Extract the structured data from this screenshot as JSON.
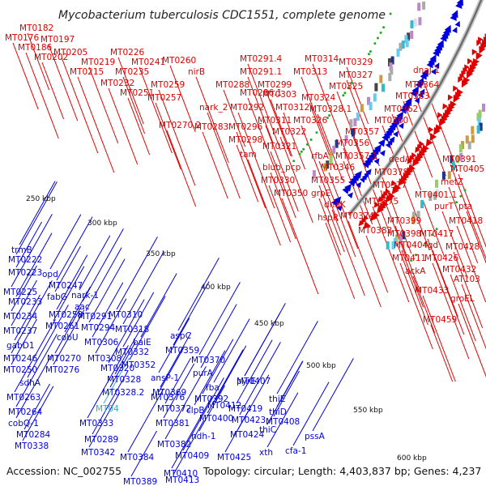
{
  "map": {
    "title": "Mycobacterium tuberculosis CDC1551, complete genome",
    "accession": "Accession: NC_002755",
    "summary": "Topology: circular; Length: 4,403,837 bp; Genes: 4,237"
  },
  "colors": {
    "forward": "#dd0000",
    "reverse": "#0000dd",
    "highlight": "#33aacc",
    "backbone": "#999999"
  },
  "ticks": [
    "250 kbp",
    "300 kbp",
    "350 kbp",
    "400 kbp",
    "450 kbp",
    "500 kbp",
    "550 kbp",
    "600 kbp"
  ],
  "labels": [
    {
      "text": "MT0182",
      "strand": "forward"
    },
    {
      "text": "MT0176",
      "strand": "forward"
    },
    {
      "text": "MT0197",
      "strand": "forward"
    },
    {
      "text": "MT0186",
      "strand": "forward"
    },
    {
      "text": "MT0205",
      "strand": "forward"
    },
    {
      "text": "MT0202",
      "strand": "forward"
    },
    {
      "text": "MT0226",
      "strand": "forward"
    },
    {
      "text": "MT0219",
      "strand": "forward"
    },
    {
      "text": "MT0241",
      "strand": "forward"
    },
    {
      "text": "MT0215",
      "strand": "forward"
    },
    {
      "text": "MT0235",
      "strand": "forward"
    },
    {
      "text": "MT0260",
      "strand": "forward"
    },
    {
      "text": "MT0232",
      "strand": "forward"
    },
    {
      "text": "nirB",
      "strand": "forward"
    },
    {
      "text": "MT0259",
      "strand": "forward"
    },
    {
      "text": "MT0251",
      "strand": "forward"
    },
    {
      "text": "MT0257",
      "strand": "forward"
    },
    {
      "text": "MT0270.2",
      "strand": "forward"
    },
    {
      "text": "MT0291.4",
      "strand": "forward"
    },
    {
      "text": "MT0314",
      "strand": "forward"
    },
    {
      "text": "MT0329",
      "strand": "forward"
    },
    {
      "text": "MT0291.1",
      "strand": "forward"
    },
    {
      "text": "MT0313",
      "strand": "forward"
    },
    {
      "text": "MT0327",
      "strand": "forward"
    },
    {
      "text": "dnaJ-1",
      "strand": "forward"
    },
    {
      "text": "MT0288",
      "strand": "forward"
    },
    {
      "text": "MT0299",
      "strand": "forward"
    },
    {
      "text": "MT0325",
      "strand": "forward"
    },
    {
      "text": "MT0364",
      "strand": "forward"
    },
    {
      "text": "MT0286.1",
      "strand": "forward"
    },
    {
      "text": "MT0303",
      "strand": "forward"
    },
    {
      "text": "MT0324",
      "strand": "forward"
    },
    {
      "text": "MT0363",
      "strand": "forward"
    },
    {
      "text": "nark_2",
      "strand": "forward"
    },
    {
      "text": "MT0292",
      "strand": "forward"
    },
    {
      "text": "MT0312",
      "strand": "forward"
    },
    {
      "text": "MT0328.1",
      "strand": "forward"
    },
    {
      "text": "MT0362",
      "strand": "forward"
    },
    {
      "text": "MT0311",
      "strand": "forward"
    },
    {
      "text": "MT0326",
      "strand": "forward"
    },
    {
      "text": "MT0360",
      "strand": "forward"
    },
    {
      "text": "MT0283",
      "strand": "forward"
    },
    {
      "text": "MT0296",
      "strand": "forward"
    },
    {
      "text": "MT0322",
      "strand": "forward"
    },
    {
      "text": "MT0357",
      "strand": "forward"
    },
    {
      "text": "MT0298",
      "strand": "forward"
    },
    {
      "text": "MT0321",
      "strand": "forward"
    },
    {
      "text": "MT0356",
      "strand": "forward"
    },
    {
      "text": "tam",
      "strand": "forward"
    },
    {
      "text": "rfbA",
      "strand": "forward"
    },
    {
      "text": "MT0357.1",
      "strand": "forward"
    },
    {
      "text": "blub_pcp",
      "strand": "forward"
    },
    {
      "text": "MT0346",
      "strand": "forward"
    },
    {
      "text": "dedA",
      "strand": "forward"
    },
    {
      "text": "MT0391",
      "strand": "forward"
    },
    {
      "text": "MT0330",
      "strand": "forward"
    },
    {
      "text": "MT0355",
      "strand": "forward"
    },
    {
      "text": "MT0378",
      "strand": "forward"
    },
    {
      "text": "MT0405",
      "strand": "forward"
    },
    {
      "text": "MT0350",
      "strand": "forward"
    },
    {
      "text": "grpE",
      "strand": "forward"
    },
    {
      "text": "MT0377",
      "strand": "forward"
    },
    {
      "text": "metZ",
      "strand": "forward"
    },
    {
      "text": "dnaK",
      "strand": "forward"
    },
    {
      "text": "MT0375",
      "strand": "forward"
    },
    {
      "text": "MT0401.1",
      "strand": "forward"
    },
    {
      "text": "purT",
      "strand": "forward"
    },
    {
      "text": "hspR",
      "strand": "forward"
    },
    {
      "text": "MT0374",
      "strand": "forward"
    },
    {
      "text": "pta",
      "strand": "forward"
    },
    {
      "text": "MT0383",
      "strand": "forward"
    },
    {
      "text": "MT0399",
      "strand": "forward"
    },
    {
      "text": "MT0418",
      "strand": "forward"
    },
    {
      "text": "MT0398",
      "strand": "forward"
    },
    {
      "text": "MT0417",
      "strand": "forward"
    },
    {
      "text": "MT0404",
      "strand": "forward"
    },
    {
      "text": "fgd",
      "strand": "forward"
    },
    {
      "text": "MT0428",
      "strand": "forward"
    },
    {
      "text": "MT0411",
      "strand": "forward"
    },
    {
      "text": "MT0426",
      "strand": "forward"
    },
    {
      "text": "ackA",
      "strand": "forward"
    },
    {
      "text": "MT0432",
      "strand": "forward"
    },
    {
      "text": "AT103",
      "strand": "forward"
    },
    {
      "text": "MT0433",
      "strand": "forward"
    },
    {
      "text": "groEL",
      "strand": "forward"
    },
    {
      "text": "MT0459",
      "strand": "forward"
    },
    {
      "text": "trmB",
      "strand": "reverse"
    },
    {
      "text": "MT0222",
      "strand": "reverse"
    },
    {
      "text": "MT0223",
      "strand": "reverse"
    },
    {
      "text": "opd",
      "strand": "reverse"
    },
    {
      "text": "MT0247",
      "strand": "reverse"
    },
    {
      "text": "MT0225",
      "strand": "reverse"
    },
    {
      "text": "fabG",
      "strand": "reverse"
    },
    {
      "text": "nark-1",
      "strand": "reverse"
    },
    {
      "text": "MT0233",
      "strand": "reverse"
    },
    {
      "text": "aac",
      "strand": "reverse"
    },
    {
      "text": "MT0234",
      "strand": "reverse"
    },
    {
      "text": "MT0258",
      "strand": "reverse"
    },
    {
      "text": "MT0291",
      "strand": "reverse"
    },
    {
      "text": "MT0310",
      "strand": "reverse"
    },
    {
      "text": "MT0237",
      "strand": "reverse"
    },
    {
      "text": "MT0261",
      "strand": "reverse"
    },
    {
      "text": "MT0294",
      "strand": "reverse"
    },
    {
      "text": "MT0318",
      "strand": "reverse"
    },
    {
      "text": "cobU",
      "strand": "reverse"
    },
    {
      "text": "MT0306",
      "strand": "reverse"
    },
    {
      "text": "baiE",
      "strand": "reverse"
    },
    {
      "text": "aspC",
      "strand": "reverse"
    },
    {
      "text": "gabD1",
      "strand": "reverse"
    },
    {
      "text": "MT0332",
      "strand": "reverse"
    },
    {
      "text": "MT0359",
      "strand": "reverse"
    },
    {
      "text": "MT0246",
      "strand": "reverse"
    },
    {
      "text": "MT0270",
      "strand": "reverse"
    },
    {
      "text": "MT0308",
      "strand": "reverse"
    },
    {
      "text": "MT0352",
      "strand": "reverse"
    },
    {
      "text": "MT0370",
      "strand": "reverse"
    },
    {
      "text": "MT0250",
      "strand": "reverse"
    },
    {
      "text": "MT0276",
      "strand": "reverse"
    },
    {
      "text": "MT0320",
      "strand": "reverse"
    },
    {
      "text": "sdhA",
      "strand": "reverse"
    },
    {
      "text": "MT0328",
      "strand": "reverse"
    },
    {
      "text": "ansP-1",
      "strand": "reverse"
    },
    {
      "text": "purA",
      "strand": "reverse"
    },
    {
      "text": "MT0263",
      "strand": "reverse"
    },
    {
      "text": "MT0328.2",
      "strand": "reverse"
    },
    {
      "text": "MT0369",
      "strand": "reverse"
    },
    {
      "text": "fba",
      "strand": "reverse"
    },
    {
      "text": "pyrE",
      "strand": "reverse"
    },
    {
      "text": "MT04",
      "strand": "highlight"
    },
    {
      "text": "MT0392",
      "strand": "reverse"
    },
    {
      "text": "MT0407",
      "strand": "reverse"
    },
    {
      "text": "MT0264",
      "strand": "reverse"
    },
    {
      "text": "MT0376",
      "strand": "reverse"
    },
    {
      "text": "MT0412",
      "strand": "reverse"
    },
    {
      "text": "cobQ-1",
      "strand": "reverse"
    },
    {
      "text": "MT0333",
      "strand": "reverse"
    },
    {
      "text": "MT0372",
      "strand": "reverse"
    },
    {
      "text": "clpB",
      "strand": "reverse"
    },
    {
      "text": "MT0419",
      "strand": "reverse"
    },
    {
      "text": "thiE",
      "strand": "reverse"
    },
    {
      "text": "MT0284",
      "strand": "reverse"
    },
    {
      "text": "MT0381",
      "strand": "reverse"
    },
    {
      "text": "MT0400",
      "strand": "reverse"
    },
    {
      "text": "MT0423",
      "strand": "reverse"
    },
    {
      "text": "thiD",
      "strand": "reverse"
    },
    {
      "text": "MT0338",
      "strand": "reverse"
    },
    {
      "text": "MT0289",
      "strand": "reverse"
    },
    {
      "text": "MT0382",
      "strand": "reverse"
    },
    {
      "text": "ndh-1",
      "strand": "reverse"
    },
    {
      "text": "MT0424",
      "strand": "reverse"
    },
    {
      "text": "thiC",
      "strand": "reverse"
    },
    {
      "text": "pssA",
      "strand": "reverse"
    },
    {
      "text": "MT0408",
      "strand": "reverse"
    },
    {
      "text": "MT0342",
      "strand": "reverse"
    },
    {
      "text": "MT0384",
      "strand": "reverse"
    },
    {
      "text": "MT0409",
      "strand": "reverse"
    },
    {
      "text": "MT0425",
      "strand": "reverse"
    },
    {
      "text": "xth",
      "strand": "reverse"
    },
    {
      "text": "cfa-1",
      "strand": "reverse"
    },
    {
      "text": "MT0410",
      "strand": "reverse"
    },
    {
      "text": "MT0389",
      "strand": "reverse"
    },
    {
      "text": "MT0413",
      "strand": "reverse"
    }
  ]
}
